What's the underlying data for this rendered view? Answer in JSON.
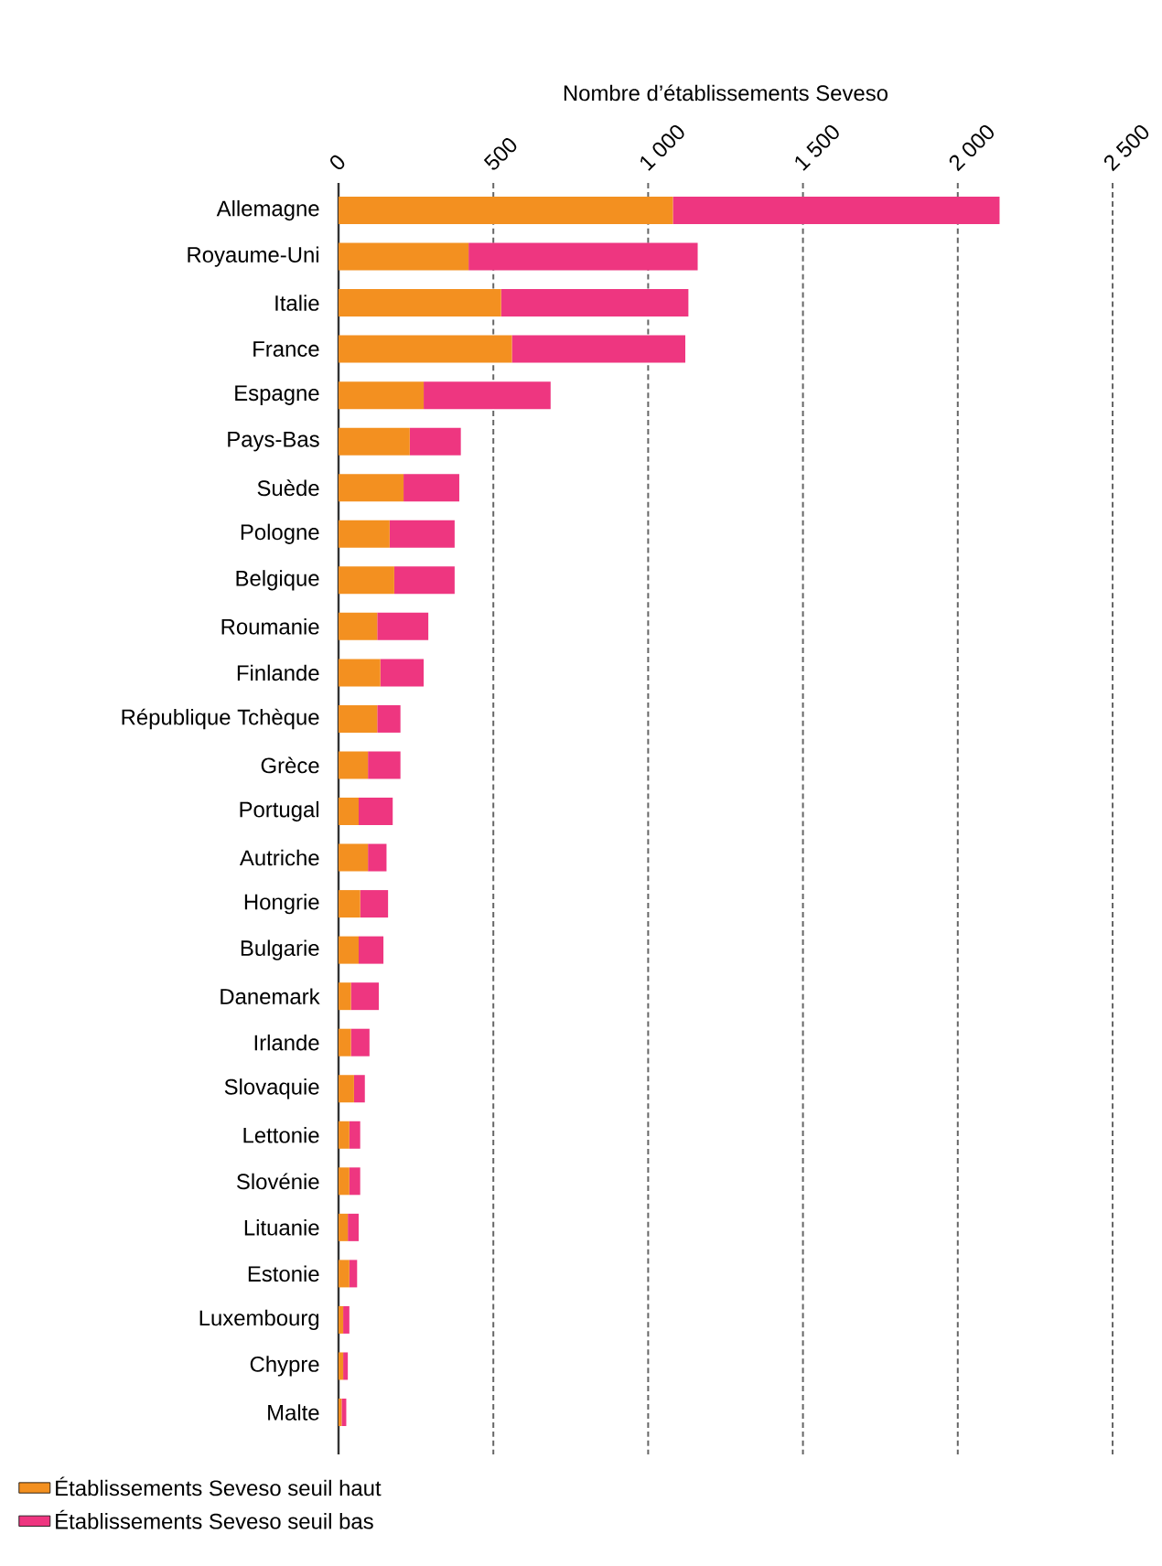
{
  "chart_data": {
    "type": "bar",
    "orientation": "horizontal",
    "stacked": true,
    "xlabel": "Nombre d’établissements Seveso",
    "categories": [
      "Allemagne",
      "Royaume-Uni",
      "Italie",
      "France",
      "Espagne",
      "Pays-Bas",
      "Suède",
      "Pologne",
      "Belgique",
      "Roumanie",
      "Finlande",
      "République Tchèque",
      "Grèce",
      "Portugal",
      "Autriche",
      "Hongrie",
      "Bulgarie",
      "Danemark",
      "Irlande",
      "Slovaquie",
      "Lettonie",
      "Slovénie",
      "Lituanie",
      "Estonie",
      "Luxembourg",
      "Chypre",
      "Malte"
    ],
    "series": [
      {
        "name": "Établissements Seveso seuil haut",
        "color": "#f39020",
        "values": [
          1080,
          420,
          525,
          560,
          275,
          230,
          210,
          165,
          180,
          125,
          135,
          125,
          95,
          65,
          95,
          70,
          65,
          40,
          40,
          50,
          35,
          35,
          30,
          35,
          15,
          15,
          10
        ]
      },
      {
        "name": "Établissements Seveso seuil bas",
        "color": "#ee3680",
        "values": [
          1055,
          740,
          605,
          560,
          410,
          165,
          180,
          210,
          195,
          165,
          140,
          75,
          105,
          110,
          60,
          90,
          80,
          90,
          60,
          35,
          35,
          35,
          35,
          25,
          20,
          15,
          15
        ]
      }
    ],
    "xlim": [
      0,
      2500
    ],
    "xticks": [
      0,
      500,
      {
        "value": 1000,
        "label": "1 000"
      },
      {
        "value": 1500,
        "label": "1 500"
      },
      {
        "value": 2000,
        "label": "2 000"
      },
      {
        "value": 2500,
        "label": "2 500"
      }
    ],
    "grid": "x",
    "legend": "bottom left"
  }
}
